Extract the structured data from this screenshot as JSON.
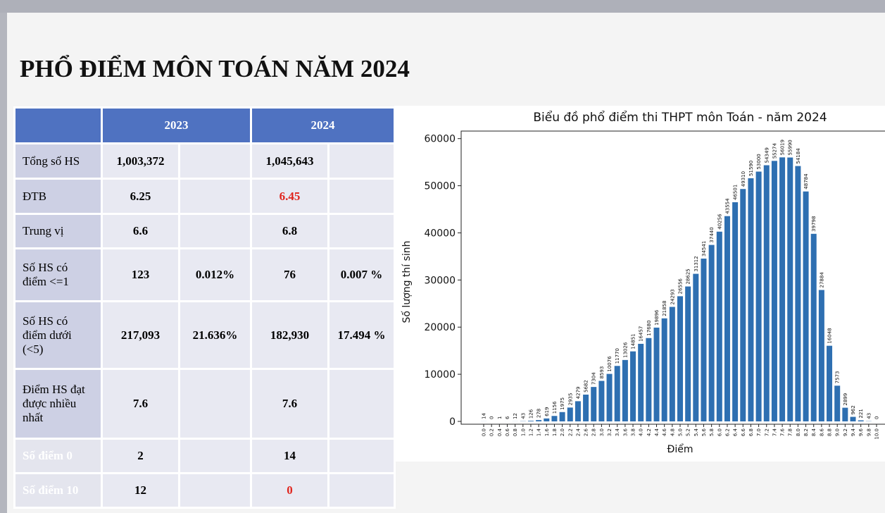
{
  "header": {
    "title": "PHỔ ĐIỂM MÔN TOÁN NĂM 2024"
  },
  "table": {
    "columns": [
      "2023",
      "2024"
    ],
    "rows": [
      {
        "label": "Tổng số HS",
        "2023": "1,003,372",
        "2024": "1,045,643"
      },
      {
        "label": "ĐTB",
        "2023": "6.25",
        "2024": "6.45"
      },
      {
        "label": "Trung vị",
        "2023": "6.6",
        "2024": "6.8"
      },
      {
        "label": "Số HS có điểm <=1",
        "2023": "123",
        "2023_pct": "0.012%",
        "2024": "76",
        "2024_pct": "0.007 %"
      },
      {
        "label": "Số HS có điểm dưới (<5)",
        "2023": "217,093",
        "2023_pct": "21.636%",
        "2024": "182,930",
        "2024_pct": "17.494 %"
      },
      {
        "label": "Điểm HS đạt được nhiều nhất",
        "2023": "7.6",
        "2024": "7.6"
      },
      {
        "label": "Số điểm 0",
        "2023": "2",
        "2024": "14"
      },
      {
        "label": "Số điểm 10",
        "2023": "12",
        "2024": "0"
      }
    ]
  },
  "chart_data": {
    "type": "bar",
    "title": "Biểu đồ phổ điểm thi THPT môn Toán - năm 2024",
    "x_label": "Điểm",
    "y_label": "Số lượng thí sinh",
    "categories": [
      "0.0",
      "0.2",
      "0.4",
      "0.6",
      "0.8",
      "1.0",
      "1.2",
      "1.4",
      "1.6",
      "1.8",
      "2.0",
      "2.2",
      "2.4",
      "2.6",
      "2.8",
      "3.0",
      "3.2",
      "3.4",
      "3.6",
      "3.8",
      "4.0",
      "4.2",
      "4.4",
      "4.6",
      "4.8",
      "5.0",
      "5.2",
      "5.4",
      "5.6",
      "5.8",
      "6.0",
      "6.2",
      "6.4",
      "6.6",
      "6.8",
      "7.0",
      "7.2",
      "7.4",
      "7.6",
      "7.8",
      "8.0",
      "8.2",
      "8.4",
      "8.6",
      "8.8",
      "9.0",
      "9.2",
      "9.4",
      "9.6",
      "9.8",
      "10.0"
    ],
    "values": [
      14,
      0,
      1,
      6,
      12,
      43,
      126,
      278,
      619,
      1156,
      1975,
      2935,
      4279,
      5682,
      7304,
      8593,
      10076,
      11770,
      13026,
      14851,
      16457,
      17680,
      19896,
      21858,
      24293,
      26556,
      28625,
      31312,
      34541,
      37440,
      40256,
      43554,
      46501,
      49310,
      51590,
      53000,
      54349,
      55274,
      56019,
      55990,
      54184,
      48784,
      39798,
      27884,
      16048,
      7573,
      2899,
      962,
      221,
      43,
      0
    ],
    "color": "#2e6fb1",
    "ylim": [
      -600,
      61600
    ],
    "yticks": [
      0,
      10000,
      20000,
      30000,
      40000,
      50000,
      60000
    ],
    "data_labels": true
  }
}
